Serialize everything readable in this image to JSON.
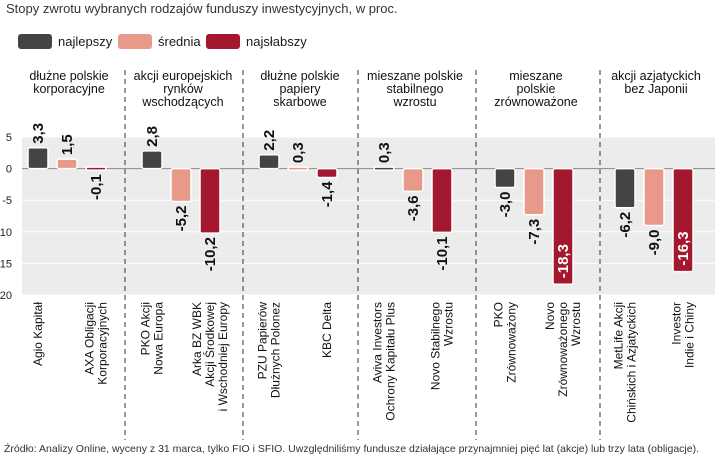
{
  "subtitle": "Stopy zwrotu wybranych rodzajów funduszy inwestycyjnych, w proc.",
  "legend": [
    {
      "label": "najlepszy",
      "color": "#444444"
    },
    {
      "label": "średnia",
      "color": "#e9998a"
    },
    {
      "label": "najsłabszy",
      "color": "#a3182f"
    }
  ],
  "source": "Źródło: Analizy Online, wyceny z 31 marca, tylko FIO i SFIO. Uwzględniliśmy fundusze działające przynajmniej pięć lat (akcje) lub trzy lata (obligacje).",
  "chart_data": {
    "type": "bar",
    "ylim": [
      -20,
      5
    ],
    "yticks": [
      5,
      0,
      -5,
      -10,
      -15,
      -20
    ],
    "groups": [
      {
        "title": [
          "dłużne polskie",
          "korporacyjne"
        ],
        "bars": [
          {
            "kind": "best",
            "value": 3.3,
            "label": "3,3"
          },
          {
            "kind": "avg",
            "value": 1.5,
            "label": "1,5"
          },
          {
            "kind": "worst",
            "value": -0.1,
            "label": "-0,1"
          }
        ],
        "funds": [
          {
            "at": 0,
            "lines": [
              "Agio Kapitał"
            ]
          },
          {
            "at": 2,
            "lines": [
              "AXA Obligacji",
              "Korporacyjnych"
            ]
          }
        ]
      },
      {
        "title": [
          "akcji europejskich",
          "rynków",
          "wschodzących"
        ],
        "bars": [
          {
            "kind": "best",
            "value": 2.8,
            "label": "2,8"
          },
          {
            "kind": "avg",
            "value": -5.2,
            "label": "-5,2"
          },
          {
            "kind": "worst",
            "value": -10.2,
            "label": "-10,2"
          }
        ],
        "funds": [
          {
            "at": 0,
            "lines": [
              "PKO Akcji",
              "Nowa Europa"
            ]
          },
          {
            "at": 2,
            "lines": [
              "Arka BZ WBK",
              "Akcji Środkowej",
              "i Wschodniej Europy"
            ]
          }
        ]
      },
      {
        "title": [
          "dłużne polskie",
          "papiery",
          "skarbowe"
        ],
        "bars": [
          {
            "kind": "best",
            "value": 2.2,
            "label": "2,2"
          },
          {
            "kind": "avg",
            "value": 0.3,
            "label": "0,3"
          },
          {
            "kind": "worst",
            "value": -1.4,
            "label": "-1,4"
          }
        ],
        "funds": [
          {
            "at": 0,
            "lines": [
              "PZU Papierów",
              "Dłużnych Polonez"
            ]
          },
          {
            "at": 2,
            "lines": [
              "KBC Delta"
            ]
          }
        ]
      },
      {
        "title": [
          "mieszane polskie",
          "stabilnego",
          "wzrostu"
        ],
        "bars": [
          {
            "kind": "best",
            "value": 0.3,
            "label": "0,3"
          },
          {
            "kind": "avg",
            "value": -3.6,
            "label": "-3,6"
          },
          {
            "kind": "worst",
            "value": -10.1,
            "label": "-10,1"
          }
        ],
        "funds": [
          {
            "at": 0,
            "lines": [
              "Aviva Investors",
              "Ochrony Kapitału Plus"
            ]
          },
          {
            "at": 2,
            "lines": [
              "Novo Stabilnego",
              "Wzrostu"
            ]
          }
        ]
      },
      {
        "title": [
          "mieszane",
          "polskie",
          "zrównoważone"
        ],
        "bars": [
          {
            "kind": "best",
            "value": -3.0,
            "label": "-3,0"
          },
          {
            "kind": "avg",
            "value": -7.3,
            "label": "-7,3"
          },
          {
            "kind": "worst",
            "value": -18.3,
            "label": "-18,3"
          }
        ],
        "funds": [
          {
            "at": 0,
            "lines": [
              "PKO",
              "Zrównoważony"
            ]
          },
          {
            "at": 2,
            "lines": [
              "Novo",
              "Zrównoważonego",
              "Wzrostu"
            ]
          }
        ]
      },
      {
        "title": [
          "akcji azjatyckich",
          "bez Japonii"
        ],
        "bars": [
          {
            "kind": "best",
            "value": -6.2,
            "label": "-6,2"
          },
          {
            "kind": "avg",
            "value": -9.0,
            "label": "-9,0"
          },
          {
            "kind": "worst",
            "value": -16.3,
            "label": "-16,3"
          }
        ],
        "funds": [
          {
            "at": 0,
            "lines": [
              "MetLife Akcji",
              "Chińskich i Azjatyckich"
            ]
          },
          {
            "at": 2,
            "lines": [
              "Investor",
              "Indie i Chiny"
            ]
          }
        ]
      }
    ]
  }
}
